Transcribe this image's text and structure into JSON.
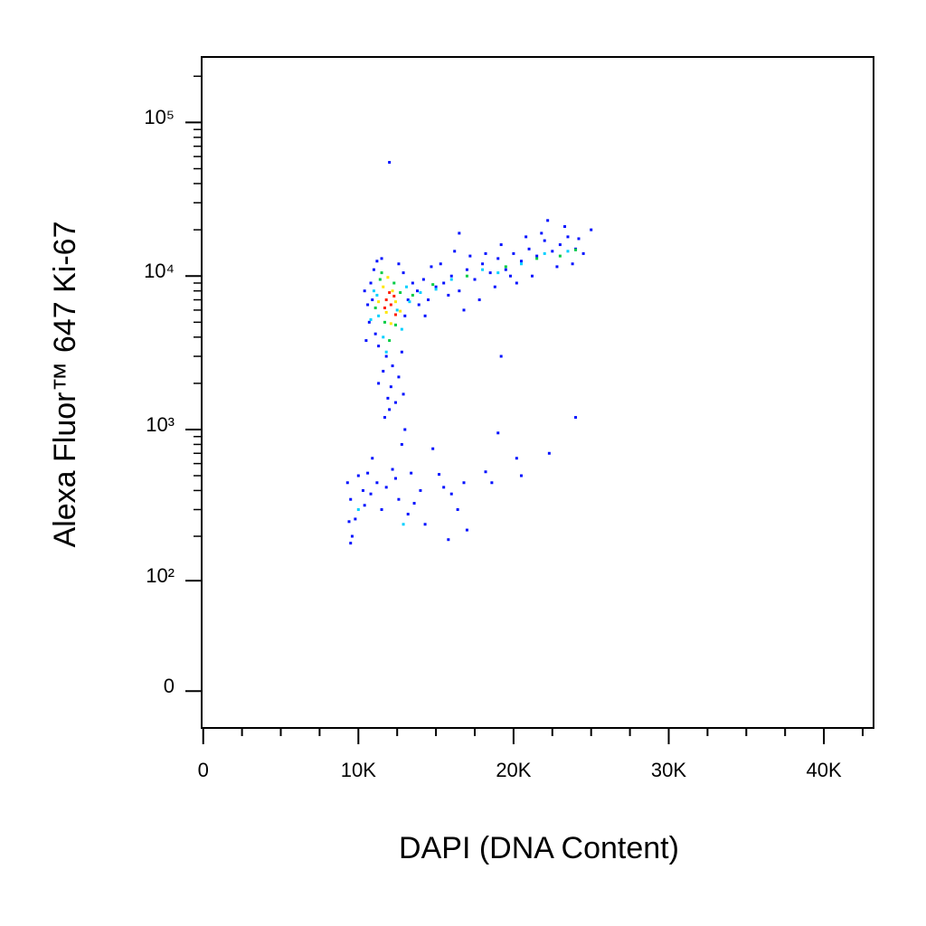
{
  "chart_data": {
    "type": "scatter",
    "xlabel": "DAPI (DNA Content)",
    "ylabel": "Alexa Fluor™ 647 Ki-67",
    "yscale": "biexponential",
    "xlim": [
      -100,
      43200
    ],
    "ylim": [
      -23,
      267000
    ],
    "xticks": [
      0,
      {
        "value": 10000,
        "label": "10K"
      },
      {
        "value": 20000,
        "label": "20K"
      },
      {
        "value": 30000,
        "label": "30K"
      },
      {
        "value": 40000,
        "label": "40K"
      }
    ],
    "xminor": [
      2500,
      5000,
      7500,
      12500,
      15000,
      17500,
      22500,
      25000,
      27500,
      32500,
      35000,
      37500,
      42500
    ],
    "yticks": [
      0,
      {
        "value": 100,
        "label": "10²"
      },
      {
        "value": 1000,
        "label": "10³"
      },
      {
        "value": 10000,
        "label": "10⁴"
      },
      {
        "value": 100000,
        "label": "10⁵"
      }
    ],
    "yminor": [
      200,
      300,
      400,
      500,
      600,
      700,
      800,
      900,
      2000,
      3000,
      4000,
      5000,
      6000,
      7000,
      8000,
      9000,
      20000,
      30000,
      40000,
      50000,
      60000,
      70000,
      80000,
      90000,
      200000
    ],
    "series": [
      {
        "color": "#0010ff",
        "x": [
          10800,
          11000,
          11200,
          10900,
          11500,
          12600,
          12900,
          10700,
          10600,
          11100,
          11300,
          11800,
          12200,
          12600,
          12100,
          11600,
          12800,
          13000,
          13200,
          10500,
          10400,
          11900,
          12400,
          11700,
          12000,
          12900,
          11300,
          13500,
          13800,
          14200,
          14500,
          15000,
          15500,
          16000,
          16500,
          17000,
          17500,
          18000,
          18500,
          19000,
          19500,
          20000,
          20500,
          21000,
          21500,
          22000,
          22500,
          23000,
          23500,
          24000,
          24500,
          25000,
          22200,
          23300,
          21800,
          20800,
          19200,
          18200,
          17200,
          16200,
          15300,
          14700,
          16800,
          18800,
          20200,
          21200,
          22800,
          23800,
          15800,
          17800,
          19800,
          24200,
          13900,
          14300,
          16500,
          12000,
          19200,
          24000,
          13000,
          12800,
          14800,
          19000,
          22300,
          20500,
          20200,
          18200,
          18600,
          9300,
          9500,
          9400,
          9600,
          9500,
          10000,
          10300,
          10600,
          10800,
          11200,
          11500,
          11800,
          12400,
          12600,
          13200,
          13600,
          14000,
          14300,
          15200,
          15500,
          16000,
          16400,
          16800,
          17000,
          15800,
          12200,
          10900,
          10400,
          9800,
          13400
        ],
        "values": [
          9000,
          11000,
          12500,
          7000,
          13000,
          12000,
          10500,
          5000,
          6500,
          4200,
          3500,
          3000,
          2600,
          2200,
          1900,
          2400,
          3200,
          5500,
          7000,
          3800,
          8000,
          1600,
          1500,
          1200,
          1350,
          1700,
          2000,
          9000,
          8000,
          9500,
          7000,
          8500,
          9000,
          10000,
          8000,
          11000,
          9500,
          12000,
          10500,
          13000,
          11000,
          14000,
          12500,
          15000,
          13500,
          17000,
          14500,
          16000,
          18000,
          15000,
          14000,
          20000,
          23000,
          21000,
          19000,
          18000,
          16000,
          14000,
          13500,
          14500,
          12000,
          11500,
          6000,
          8500,
          9000,
          10000,
          11500,
          12000,
          7500,
          7000,
          10000,
          17500,
          6500,
          5500,
          19000,
          55000,
          3000,
          1200,
          1000,
          800,
          750,
          950,
          700,
          500,
          650,
          530,
          450,
          450,
          350,
          250,
          200,
          180,
          500,
          400,
          520,
          380,
          450,
          300,
          420,
          480,
          350,
          280,
          330,
          400,
          240,
          510,
          420,
          380,
          300,
          450,
          220,
          190,
          550,
          650,
          320,
          260,
          520
        ]
      },
      {
        "color": "#00d0ff",
        "x": [
          11000,
          11300,
          12500,
          12800,
          11600,
          11200,
          13100,
          14000,
          16000,
          18000,
          20500,
          22000,
          23500,
          11800,
          10800,
          13300,
          10000,
          12900,
          15000,
          19000
        ],
        "values": [
          8000,
          5500,
          6000,
          4500,
          4000,
          7500,
          8500,
          7800,
          9500,
          11000,
          12000,
          14000,
          14500,
          3200,
          5200,
          6800,
          300,
          240,
          8200,
          10500
        ]
      },
      {
        "color": "#00cc44",
        "x": [
          11400,
          12300,
          11700,
          12400,
          11100,
          12700,
          13500,
          14800,
          17000,
          19500,
          21500,
          23000,
          12000,
          11500,
          24000
        ],
        "values": [
          9500,
          9000,
          5000,
          4800,
          6200,
          7800,
          7500,
          8800,
          10000,
          11500,
          13000,
          13500,
          3800,
          10500,
          14800
        ]
      },
      {
        "color": "#ffe600",
        "x": [
          11600,
          12200,
          11800,
          12400,
          11300,
          12700,
          11900,
          12100
        ],
        "values": [
          8500,
          8000,
          5800,
          6800,
          6800,
          5900,
          9800,
          4900
        ]
      },
      {
        "color": "#ff2000",
        "x": [
          11800,
          12100,
          12300,
          11700,
          12000,
          12400
        ],
        "values": [
          7000,
          6500,
          7400,
          6200,
          7800,
          5600
        ]
      }
    ]
  }
}
